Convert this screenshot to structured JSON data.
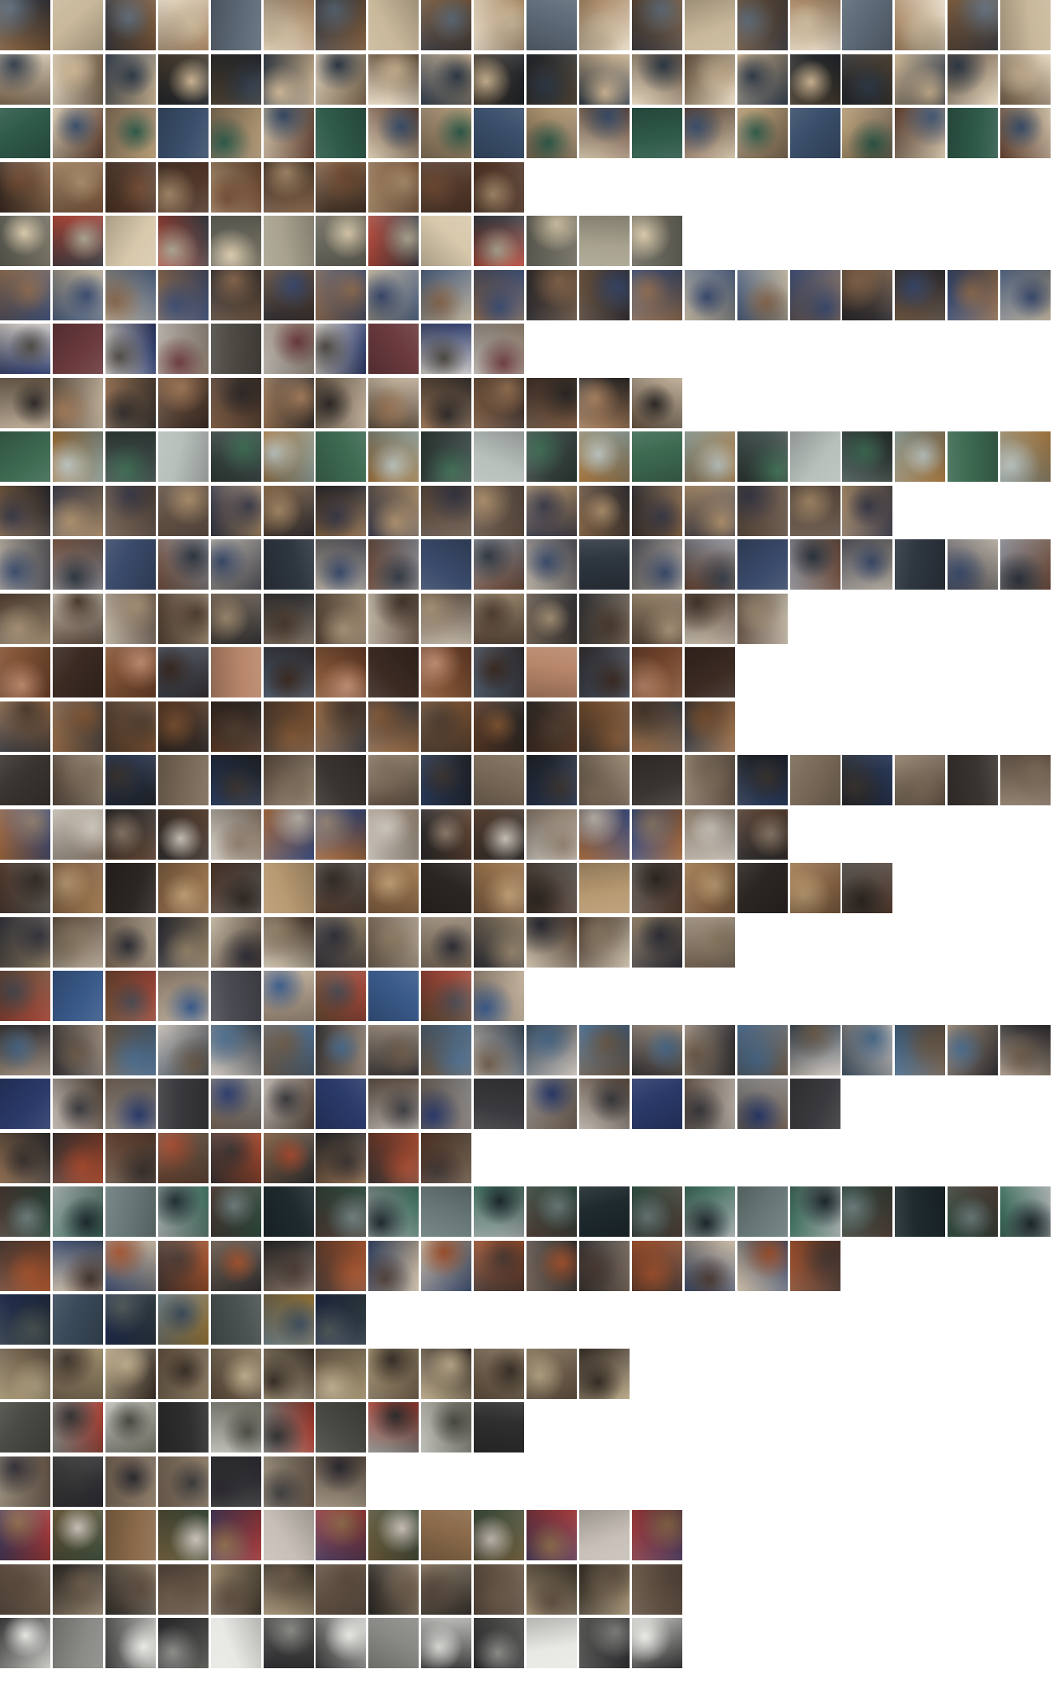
{
  "mosaic": {
    "rows": [
      {
        "count": 20,
        "palette": [
          "#7a5a3c",
          "#c9b89a",
          "#3b3a3e",
          "#e7dcc8",
          "#5d6a77",
          "#a48360"
        ]
      },
      {
        "count": 20,
        "palette": [
          "#4a4032",
          "#20242a",
          "#c8b190",
          "#6e5a44",
          "#e4d7c0",
          "#2f3a48"
        ]
      },
      {
        "count": 20,
        "palette": [
          "#2f5a4a",
          "#d4c6ad",
          "#7c6a55",
          "#3a4f6b",
          "#b49b75",
          "#5c3d2e"
        ]
      },
      {
        "count": 10,
        "palette": [
          "#4d3325",
          "#6e4a33",
          "#8b6a4e",
          "#3c2c22",
          "#a58a6a",
          "#5a4335"
        ]
      },
      {
        "count": 13,
        "palette": [
          "#5a5a52",
          "#b44a3c",
          "#d8c9ac",
          "#3a3f45",
          "#7e7a6a",
          "#a8a28f"
        ]
      },
      {
        "count": 20,
        "palette": [
          "#3a4a6e",
          "#6b5440",
          "#2c2a2e",
          "#8a6a50",
          "#b8ad98",
          "#4d5f7c"
        ]
      },
      {
        "count": 10,
        "palette": [
          "#d8d2cc",
          "#6a3a3e",
          "#2c3a6a",
          "#8a7a6a",
          "#4e4a44",
          "#b9b4ae"
        ]
      },
      {
        "count": 13,
        "palette": [
          "#3a2c26",
          "#7a5a42",
          "#a07a5a",
          "#5a4a3a",
          "#c8b8a2",
          "#2e2a28"
        ]
      },
      {
        "count": 20,
        "palette": [
          "#3e6a52",
          "#8a9a94",
          "#4a5a58",
          "#b8c0bc",
          "#2a3430",
          "#a0723c"
        ]
      },
      {
        "count": 17,
        "palette": [
          "#5a4a3e",
          "#3a3a48",
          "#8a6a4a",
          "#2c2a2e",
          "#a88c6a",
          "#6c5c50"
        ]
      },
      {
        "count": 20,
        "palette": [
          "#4a4a52",
          "#8a8c94",
          "#3a4a6a",
          "#6a4a3a",
          "#b8b0a4",
          "#2e3640"
        ]
      },
      {
        "count": 15,
        "palette": [
          "#4a3a2e",
          "#7a6a5a",
          "#2c2c2e",
          "#a08c72",
          "#5e4c40",
          "#c9bfae"
        ]
      },
      {
        "count": 14,
        "palette": [
          "#6a3e28",
          "#3a2a22",
          "#8a5a3a",
          "#4e5a6a",
          "#b8866a",
          "#2e2a2c"
        ]
      },
      {
        "count": 14,
        "palette": [
          "#5a3a26",
          "#2a2624",
          "#7a5232",
          "#3a3a3e",
          "#9a6e48",
          "#4c3c30"
        ]
      },
      {
        "count": 20,
        "palette": [
          "#3a3430",
          "#5a4a3e",
          "#2a3a5a",
          "#7a6a58",
          "#1e2024",
          "#9a8a76"
        ]
      },
      {
        "count": 15,
        "palette": [
          "#5a4232",
          "#8a7a6a",
          "#3a4a7a",
          "#a0683e",
          "#c8c2b8",
          "#2c2a2a"
        ]
      },
      {
        "count": 17,
        "palette": [
          "#4a3428",
          "#7a5a3e",
          "#2c2622",
          "#a07a52",
          "#5e5a56",
          "#b89a72"
        ]
      },
      {
        "count": 14,
        "palette": [
          "#8a7a62",
          "#4a3a2e",
          "#c8bca8",
          "#2e2e36",
          "#6a5a4a",
          "#a89a88"
        ]
      },
      {
        "count": 10,
        "palette": [
          "#6a4a34",
          "#3a5a8a",
          "#a0483a",
          "#c8b8a2",
          "#4a4a52",
          "#8a7a6a"
        ]
      },
      {
        "count": 20,
        "palette": [
          "#3a4a5a",
          "#c8c0b8",
          "#6a5a4a",
          "#2e2c2e",
          "#a09080",
          "#4a6a8a"
        ]
      },
      {
        "count": 16,
        "palette": [
          "#2a3a6a",
          "#5a4a3e",
          "#8a8a8a",
          "#3a3a3e",
          "#6a5a4e",
          "#b8b0a8"
        ]
      },
      {
        "count": 9,
        "palette": [
          "#5a3a2a",
          "#3a3230",
          "#8a6a4e",
          "#2a2a2c",
          "#a0482e",
          "#6a5a4a"
        ]
      },
      {
        "count": 20,
        "palette": [
          "#2e4a3e",
          "#3a6a5a",
          "#6a7a7a",
          "#a0a8a8",
          "#4a3a34",
          "#1e2a2e"
        ]
      },
      {
        "count": 16,
        "palette": [
          "#4a3a34",
          "#7a6a5e",
          "#2c2a2a",
          "#a0522e",
          "#c8b8a2",
          "#3a4a6a"
        ]
      },
      {
        "count": 7,
        "palette": [
          "#2e3a3e",
          "#3a4a5a",
          "#1e2a4a",
          "#6a7a82",
          "#4a5252",
          "#8a6a2e"
        ]
      },
      {
        "count": 12,
        "palette": [
          "#5a4a3a",
          "#8a7a62",
          "#3a3028",
          "#a0906e",
          "#6a5a48",
          "#b8a888"
        ]
      },
      {
        "count": 10,
        "palette": [
          "#4a4a44",
          "#8a8a86",
          "#c8c8c2",
          "#2e2e2e",
          "#6a6a5e",
          "#a03a2e"
        ]
      },
      {
        "count": 7,
        "palette": [
          "#8a7a66",
          "#2c2a30",
          "#5a4a3e",
          "#a09482",
          "#3a3a3a",
          "#6e5e50"
        ]
      },
      {
        "count": 13,
        "palette": [
          "#4a3a5a",
          "#6a5a3a",
          "#8a6a4a",
          "#3a4a3a",
          "#a03a3a",
          "#c8c0b8"
        ]
      },
      {
        "count": 13,
        "palette": [
          "#6a5a4a",
          "#3a3228",
          "#a08e72",
          "#5a4a3e",
          "#2e2a26",
          "#8a7a66"
        ]
      },
      {
        "count": 13,
        "palette": [
          "#3a3a3a",
          "#8a8a86",
          "#c8c8c4",
          "#5a5a56",
          "#e8e8e4",
          "#2a2a2e"
        ]
      }
    ]
  }
}
